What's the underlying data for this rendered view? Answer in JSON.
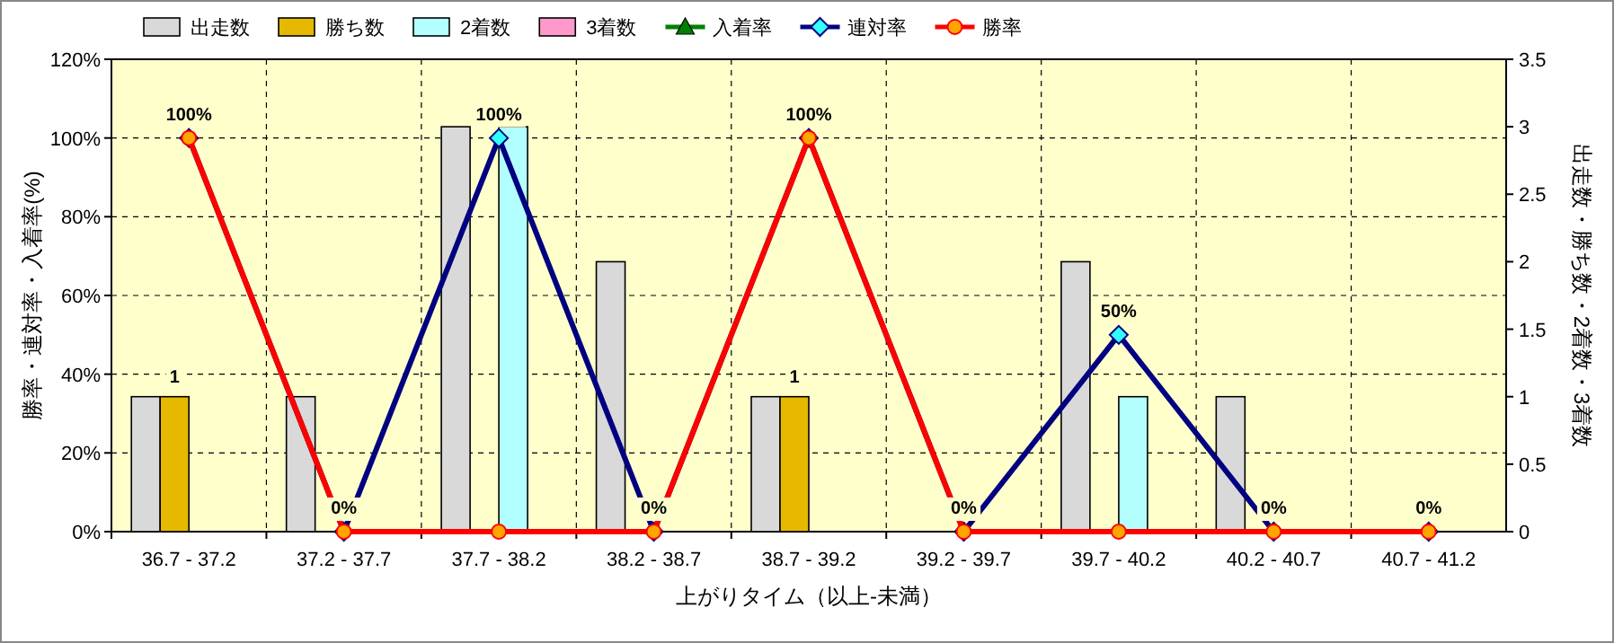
{
  "chart_data": {
    "type": "bar",
    "xlabel": "上がりタイム（以上-未満）",
    "ylabel": "勝率・連対率・入着率(%)",
    "y2label": "出走数・勝ち数・2着数・3着数",
    "categories": [
      "36.7 - 37.2",
      "37.2 - 37.7",
      "37.7 - 38.2",
      "38.2 - 38.7",
      "38.7 - 39.2",
      "39.2 - 39.7",
      "39.7 - 40.2",
      "40.2 - 40.7",
      "40.7 - 41.2"
    ],
    "series": [
      {
        "name": "出走数",
        "axis": "y2",
        "color": "#d9d9d9",
        "values": [
          1,
          1,
          3,
          2,
          1,
          0,
          2,
          1,
          0
        ]
      },
      {
        "name": "勝ち数",
        "axis": "y2",
        "color": "#e6b800",
        "values": [
          1,
          0,
          0,
          0,
          1,
          0,
          0,
          0,
          0
        ],
        "value_labels": [
          "1",
          null,
          null,
          null,
          "1",
          null,
          null,
          null,
          null
        ]
      },
      {
        "name": "2着数",
        "axis": "y2",
        "color": "#b3ffff",
        "values": [
          0,
          0,
          3,
          0,
          0,
          0,
          1,
          0,
          0
        ]
      },
      {
        "name": "3着数",
        "axis": "y2",
        "color": "#ff99cc",
        "values": [
          0,
          0,
          0,
          0,
          0,
          0,
          0,
          0,
          0
        ]
      },
      {
        "name": "入着率",
        "type": "line",
        "axis": "y",
        "color": "#008000",
        "marker": "triangle",
        "values": [
          null,
          null,
          null,
          null,
          null,
          null,
          null,
          null,
          null
        ]
      },
      {
        "name": "連対率",
        "type": "line",
        "axis": "y",
        "color": "#000080",
        "marker": "diamond",
        "values": [
          100,
          0,
          100,
          0,
          100,
          0,
          50,
          0,
          0
        ],
        "value_labels": [
          "100%",
          "0%",
          "100%",
          "0%",
          "100%",
          "0%",
          "50%",
          "0%",
          "0%"
        ]
      },
      {
        "name": "勝率",
        "type": "line",
        "axis": "y",
        "color": "#ff0000",
        "marker": "circle",
        "values": [
          100,
          0,
          0,
          0,
          100,
          0,
          0,
          0,
          0
        ]
      }
    ],
    "ylim": [
      0,
      120
    ],
    "yticks": [
      {
        "value": 0,
        "label": "0%"
      },
      {
        "value": 20,
        "label": "20%"
      },
      {
        "value": 40,
        "label": "40%"
      },
      {
        "value": 60,
        "label": "60%"
      },
      {
        "value": 80,
        "label": "80%"
      },
      {
        "value": 100,
        "label": "100%"
      },
      {
        "value": 120,
        "label": "120%"
      }
    ],
    "y2lim": [
      0,
      3.5
    ],
    "y2ticks": [
      0,
      0.5,
      1,
      1.5,
      2,
      2.5,
      3,
      3.5
    ],
    "grid": true,
    "legend": "top"
  }
}
